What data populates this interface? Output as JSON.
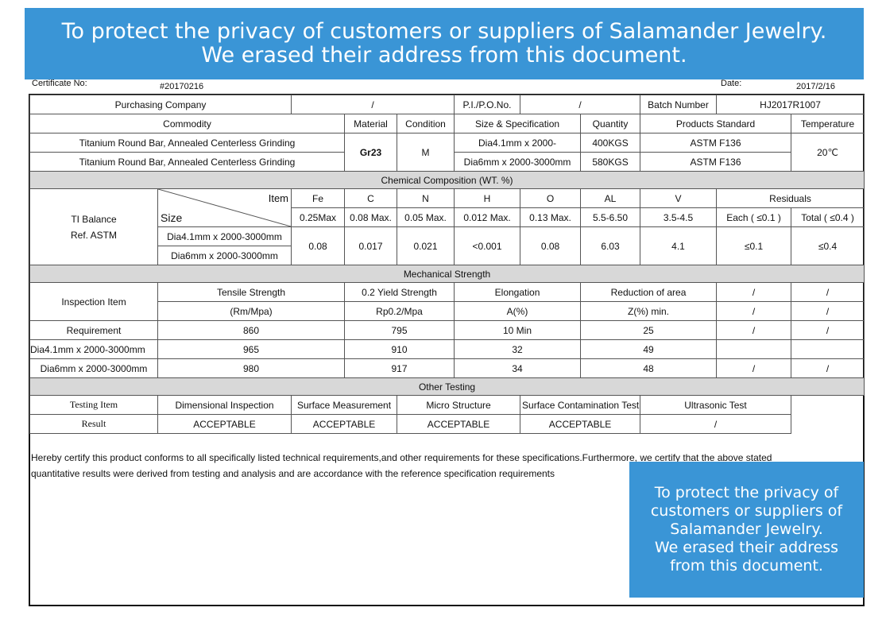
{
  "banner": {
    "line1": "To protect the privacy of customers or suppliers of Salamander Jewelry.",
    "line2": "We erased their address from this document."
  },
  "meta": {
    "cert_label": "Certificate No:",
    "cert_value": "#20170216",
    "date_label": "Date:",
    "date_value": "2017/2/16"
  },
  "header": {
    "purchasing_label": "Purchasing Company",
    "purchasing_value": "/",
    "po_label": "P.I./P.O.No.",
    "po_value": "/",
    "batch_label": "Batch Number",
    "batch_value": "HJ2017R1007"
  },
  "commodity": {
    "headers": [
      "Commodity",
      "Material",
      "Condition",
      "Size & Specification",
      "Quantity",
      "Products Standard",
      "Temperature"
    ],
    "rows": [
      {
        "name": "Titanium Round Bar, Annealed Centerless Grinding",
        "size": "Dia4.1mm x 2000-",
        "qty": "400KGS",
        "standard": "ASTM F136"
      },
      {
        "name": "Titanium Round Bar, Annealed Centerless Grinding",
        "size": "Dia6mm x 2000-3000mm",
        "qty": "580KGS",
        "standard": "ASTM F136"
      }
    ],
    "material": "Gr23",
    "condition": "M",
    "temperature": "20℃"
  },
  "chemical": {
    "title": "Chemical Composition (WT. %)",
    "left_line1": "TI Balance",
    "left_line2": "Ref. ASTM",
    "item_label": "Item",
    "size_label": "Size",
    "elements": [
      "Fe",
      "C",
      "N",
      "H",
      "O",
      "AL",
      "V"
    ],
    "residuals_label": "Residuals",
    "limits": [
      "0.25Max",
      "0.08 Max.",
      "0.05 Max.",
      "0.012 Max.",
      "0.13 Max.",
      "5.5-6.50",
      "3.5-4.5",
      "Each ( ≤0.1 )",
      "Total ( ≤0.4 )"
    ],
    "sizes": [
      "Dia4.1mm x 2000-3000mm",
      "Dia6mm x 2000-3000mm"
    ],
    "results": [
      "0.08",
      "0.017",
      "0.021",
      "<0.001",
      "0.08",
      "6.03",
      "4.1",
      "≤0.1",
      "≤0.4"
    ]
  },
  "mechanical": {
    "title": "Mechanical Strength",
    "inspection_label": "Inspection Item",
    "headers": [
      "Tensile Strength",
      "0.2 Yield Strength",
      "Elongation",
      "Reduction of area",
      "/",
      "/"
    ],
    "units": [
      "(Rm/Mpa)",
      "Rp0.2/Mpa",
      "A(%)",
      "Z(%) min.",
      "/",
      "/"
    ],
    "rows": [
      {
        "label": "Requirement",
        "values": [
          "860",
          "795",
          "10 Min",
          "25",
          "/",
          "/"
        ]
      },
      {
        "label": "Dia4.1mm x 2000-3000mm",
        "values": [
          "965",
          "910",
          "32",
          "49",
          "",
          ""
        ]
      },
      {
        "label": "Dia6mm x 2000-3000mm",
        "values": [
          "980",
          "917",
          "34",
          "48",
          "/",
          "/"
        ]
      }
    ]
  },
  "other": {
    "title": "Other Testing",
    "item_label": "Testing Item",
    "result_label": "Result",
    "items": [
      "Dimensional Inspection",
      "Surface Measurement",
      "Micro Structure",
      "Surface Contamination Test",
      "Ultrasonic Test"
    ],
    "results": [
      "ACCEPTABLE",
      "ACCEPTABLE",
      "ACCEPTABLE",
      "ACCEPTABLE",
      "/"
    ]
  },
  "statement": {
    "line1": "Hereby certify this product conforms to all specifically listed technical requirements,and other requirements for these specifications.Furthermore, we certify that the above stated",
    "line2": "quantitative results were derived from testing and analysis and are accordance with the reference specification requirements"
  },
  "privacy_box": {
    "lines": [
      "To protect the privacy of",
      "customers or suppliers of",
      "Salamander Jewelry.",
      "We erased their address",
      "from this document."
    ]
  }
}
